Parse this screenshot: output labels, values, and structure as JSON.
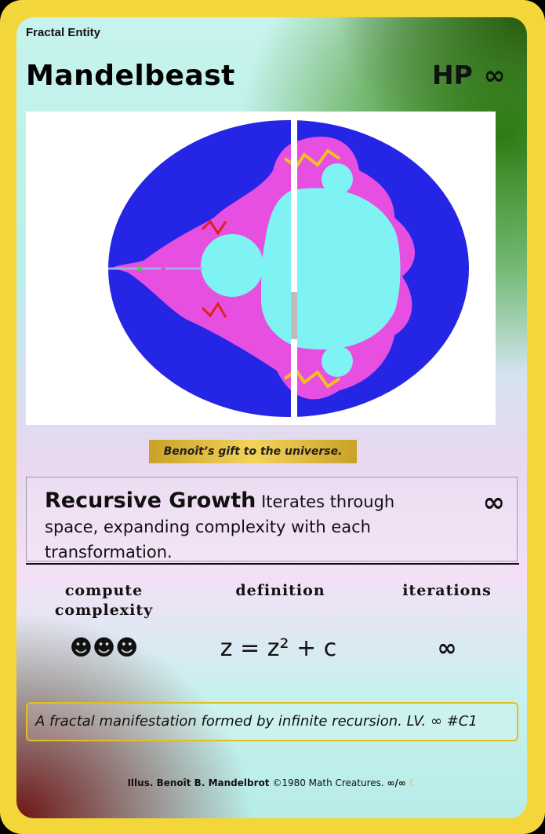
{
  "card": {
    "stage": "Fractal Entity",
    "name": "Mandelbeast",
    "hp_label": "HP",
    "hp_value": "∞",
    "caption": "Benoît’s gift to the universe.",
    "attack": {
      "name": "Recursive Growth",
      "text": "Iterates through space, expanding complexity with each transformation.",
      "damage": "∞"
    },
    "stats": [
      {
        "label": "compute complexity",
        "value": "☻☻☻"
      },
      {
        "label": "definition",
        "value": "z = z² + c"
      },
      {
        "label": "iterations",
        "value": "∞"
      }
    ],
    "flavor": "A fractal manifestation formed by infinite recursion. LV. ∞ #C1",
    "footer": {
      "illus": "Illus. Benoît B. Mandelbrot",
      "copyright": "©1980 Math Creatures.",
      "number": "∞/∞",
      "rarity_icon": "moon-icon"
    },
    "colors": {
      "border": "#f2d63a",
      "fractal_outer": "#2525e6",
      "fractal_band": "#e64fe0",
      "fractal_body": "#7ff2f4"
    }
  }
}
